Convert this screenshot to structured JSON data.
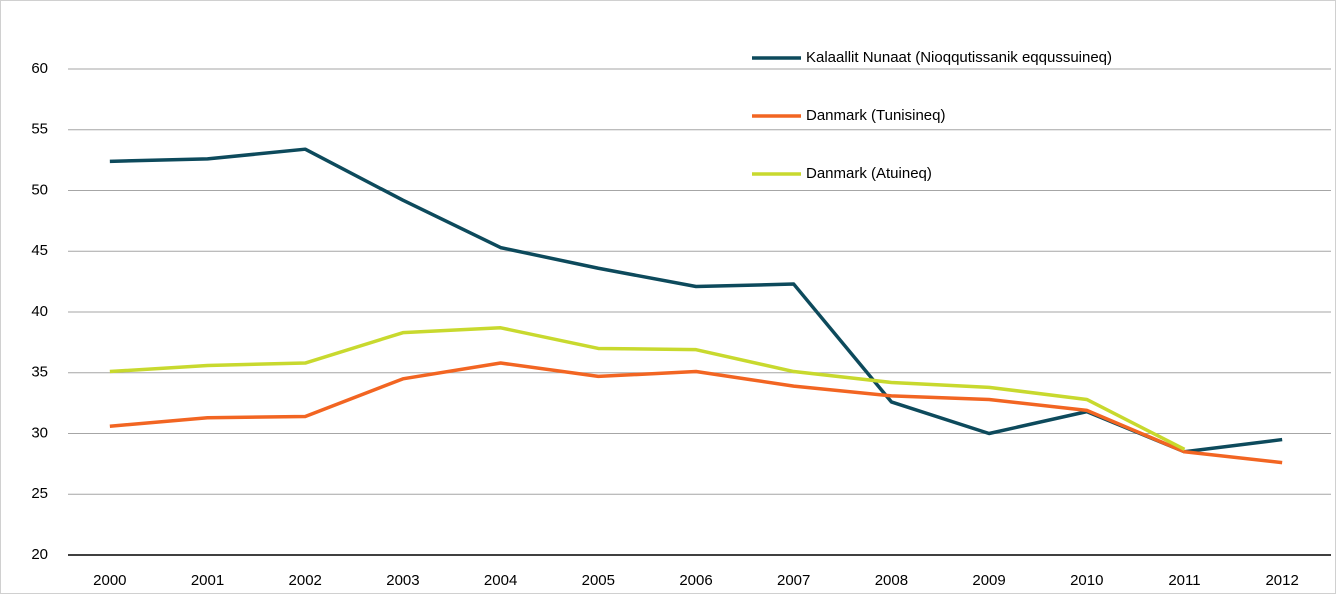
{
  "chart_data": {
    "type": "line",
    "categories": [
      "2000",
      "2001",
      "2002",
      "2003",
      "2004",
      "2005",
      "2006",
      "2007",
      "2008",
      "2009",
      "2010",
      "2011",
      "2012"
    ],
    "series": [
      {
        "name": "Kalaallit Nunaat (Nioqqutissanik eqqussuineq)",
        "color": "#0d4a5c",
        "values": [
          52.4,
          52.6,
          53.4,
          49.2,
          45.3,
          43.6,
          42.1,
          42.3,
          32.6,
          30.0,
          31.8,
          28.5,
          29.5
        ]
      },
      {
        "name": "Danmark (Tunisineq)",
        "color": "#f26522",
        "values": [
          30.6,
          31.3,
          31.4,
          34.5,
          35.8,
          34.7,
          35.1,
          33.9,
          33.1,
          32.8,
          31.9,
          28.5,
          27.6
        ]
      },
      {
        "name": "Danmark (Atuineq)",
        "color": "#c8d92e",
        "values": [
          35.1,
          35.6,
          35.8,
          38.3,
          38.7,
          37.0,
          36.9,
          35.1,
          34.2,
          33.8,
          32.8,
          28.7,
          null
        ]
      }
    ],
    "ylim": [
      20,
      60
    ],
    "yticks": [
      20,
      25,
      30,
      35,
      40,
      45,
      50,
      55,
      60
    ],
    "grid": true,
    "legend": "top-right"
  }
}
